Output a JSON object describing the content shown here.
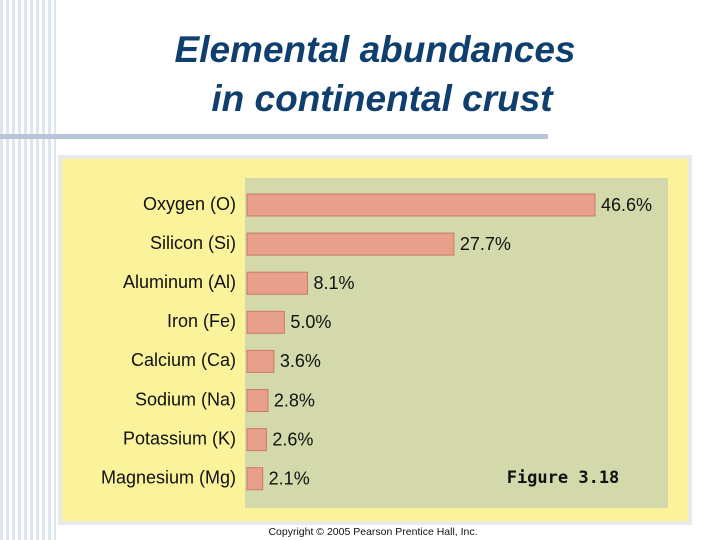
{
  "chart_data": {
    "type": "barh",
    "title": [
      "Elemental abundances",
      "in continental crust"
    ],
    "categories": [
      "Oxygen (O)",
      "Silicon (Si)",
      "Aluminum (Al)",
      "Iron (Fe)",
      "Calcium (Ca)",
      "Sodium (Na)",
      "Potassium (K)",
      "Magnesium (Mg)"
    ],
    "values": [
      46.6,
      27.7,
      8.1,
      5.0,
      3.6,
      2.8,
      2.6,
      2.1
    ],
    "value_labels": [
      "46.6%",
      "27.7%",
      "8.1%",
      "5.0%",
      "3.6%",
      "2.8%",
      "2.6%",
      "2.1%"
    ],
    "color": "#e8a08c",
    "figure_label": "Figure 3.18",
    "copyright": "Copyright © 2005 Pearson Prentice Hall, Inc."
  }
}
